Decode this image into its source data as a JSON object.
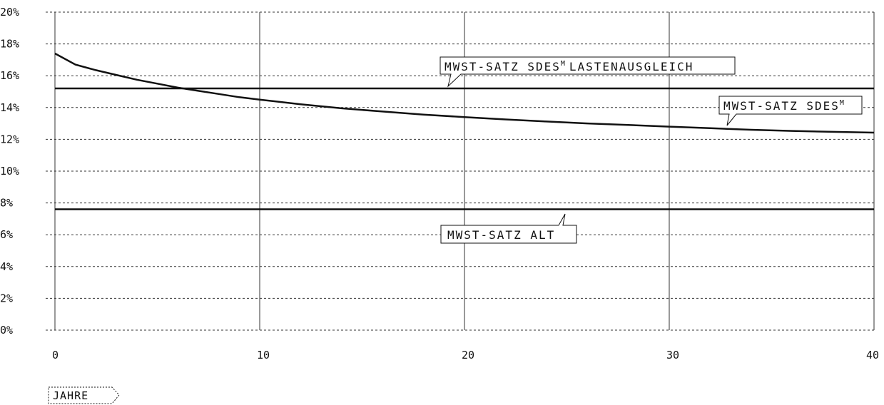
{
  "chart_data": {
    "type": "line",
    "xlabel": "JAHRE",
    "ylabel": "",
    "xlim": [
      0,
      40
    ],
    "ylim": [
      0,
      20
    ],
    "x_ticks": [
      "0",
      "10",
      "20",
      "30",
      "40"
    ],
    "y_ticks": [
      "0%",
      "2%",
      "4%",
      "6%",
      "8%",
      "10%",
      "12%",
      "14%",
      "16%",
      "18%",
      "20%"
    ],
    "grid": {
      "horizontal": "dashed",
      "vertical": "solid"
    },
    "series": [
      {
        "name": "MWST-SATZ SDES",
        "name_superscript": "M",
        "x": [
          0,
          1,
          2,
          3,
          4,
          5,
          6,
          7,
          8,
          9,
          10,
          12,
          14,
          16,
          18,
          20,
          22,
          24,
          26,
          28,
          30,
          32,
          34,
          36,
          38,
          40
        ],
        "values": [
          17.4,
          16.7,
          16.35,
          16.05,
          15.75,
          15.5,
          15.25,
          15.05,
          14.85,
          14.65,
          14.5,
          14.2,
          13.95,
          13.75,
          13.55,
          13.4,
          13.25,
          13.12,
          13.0,
          12.9,
          12.8,
          12.7,
          12.6,
          12.53,
          12.47,
          12.42
        ]
      },
      {
        "name": "MWST-SATZ SDES LASTENAUSGLEICH",
        "name_parts": [
          "MWST-SATZ SDES",
          "M",
          "LASTENAUSGLEICH"
        ],
        "x": [
          0,
          40
        ],
        "values": [
          15.2,
          15.2
        ]
      },
      {
        "name": "MWST-SATZ ALT",
        "x": [
          0,
          40
        ],
        "values": [
          7.6,
          7.6
        ]
      }
    ]
  }
}
